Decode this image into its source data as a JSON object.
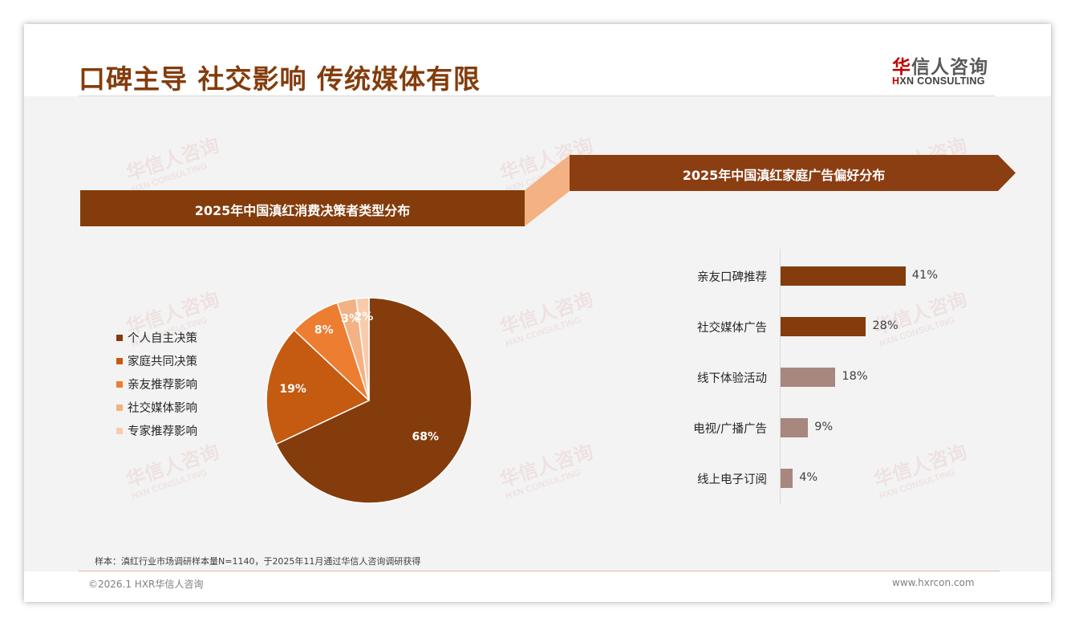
{
  "page": {
    "title": "口碑主导 社交影响 传统媒体有限",
    "logo": {
      "cn_accent": "华",
      "cn_rest": "信人咨询",
      "en_accent": "H",
      "en_rest": "XN CONSULTING"
    },
    "watermark": {
      "cn": "华信人咨询",
      "en": "HXN CONSULTING"
    },
    "footnote": "样本：滇红行业市场调研样本量N=1140，于2025年11月通过华信人咨询调研获得",
    "copyright": "©2026.1 HXR华信人咨询",
    "website": "www.hxrcon.com"
  },
  "colors": {
    "brand_dark": "#843c0c",
    "banner_right": "#8b3e12",
    "connector": "#f4b183",
    "bar_primary": "#843c0c",
    "bar_secondary": "#a8877f"
  },
  "left_panel": {
    "banner": "2025年中国滇红消费决策者类型分布"
  },
  "right_panel": {
    "banner": "2025年中国滇红家庭广告偏好分布"
  },
  "chart_data": [
    {
      "type": "pie",
      "title": "2025年中国滇红消费决策者类型分布",
      "categories": [
        "个人自主决策",
        "家庭共同决策",
        "亲友推荐影响",
        "社交媒体影响",
        "专家推荐影响"
      ],
      "values": [
        68,
        19,
        8,
        3,
        2
      ],
      "labels": [
        "68%",
        "19%",
        "8%",
        "3%",
        "2%"
      ],
      "colors": [
        "#843c0c",
        "#c55a11",
        "#ed7d31",
        "#f4b183",
        "#f8cbad"
      ],
      "legend_position": "left",
      "start_angle_deg": 0,
      "direction": "clockwise"
    },
    {
      "type": "bar",
      "orientation": "horizontal",
      "title": "2025年中国滇红家庭广告偏好分布",
      "categories": [
        "亲友口碑推荐",
        "社交媒体广告",
        "线下体验活动",
        "电视/广播广告",
        "线上电子订阅"
      ],
      "values": [
        41,
        28,
        18,
        9,
        4
      ],
      "labels": [
        "41%",
        "28%",
        "18%",
        "9%",
        "4%"
      ],
      "colors": [
        "#843c0c",
        "#843c0c",
        "#a8877f",
        "#a8877f",
        "#a8877f"
      ],
      "grid": false,
      "xlim": [
        0,
        100
      ]
    }
  ]
}
